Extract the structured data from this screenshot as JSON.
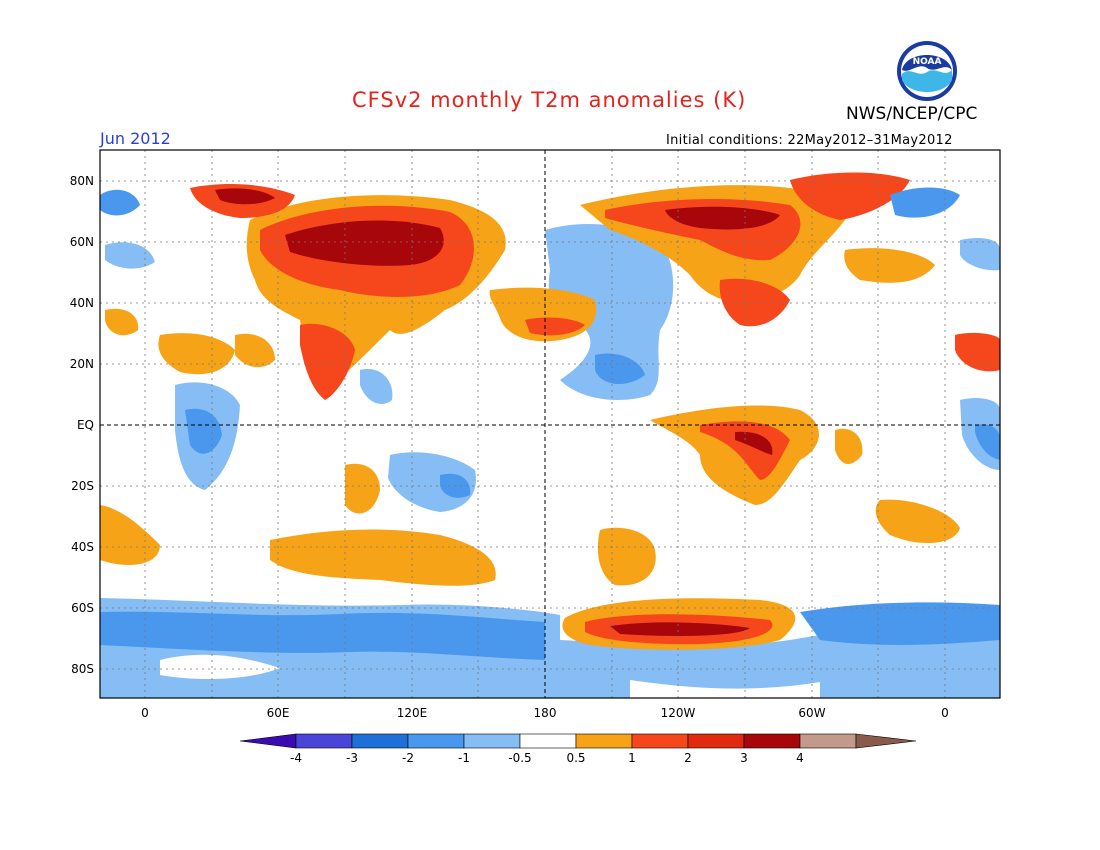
{
  "title": "CFSv2 monthly T2m anomalies (K)",
  "organization": "NWS/NCEP/CPC",
  "logo_text": "NOAA",
  "month": "Jun 2012",
  "initial_conditions": "Initial conditions: 22May2012–31May2012",
  "latitude_labels": [
    "80N",
    "60N",
    "40N",
    "20N",
    "EQ",
    "20S",
    "40S",
    "60S",
    "80S"
  ],
  "longitude_labels": [
    "0",
    "60E",
    "120E",
    "180",
    "120W",
    "60W",
    "0"
  ],
  "colorbar": {
    "labels": [
      "-4",
      "-3",
      "-2",
      "-1",
      "-0.5",
      "0.5",
      "1",
      "2",
      "3",
      "4"
    ],
    "colors": [
      "#3a0bb0",
      "#4a45d8",
      "#1f6fd8",
      "#4a98ee",
      "#86bdf4",
      "#ffffff",
      "#f7a318",
      "#f6471c",
      "#e02a0f",
      "#a7060a",
      "#c39a8a",
      "#8a5a4a"
    ]
  },
  "colors": {
    "title": "#e8211b",
    "month": "#2b3fd8",
    "ocean_background": "#ffffff",
    "warm_1": "#f7a318",
    "warm_2": "#f6471c",
    "warm_3": "#a7060a",
    "cool_1": "#86bdf4",
    "cool_2": "#4a98ee",
    "cool_3": "#1f6fd8"
  }
}
